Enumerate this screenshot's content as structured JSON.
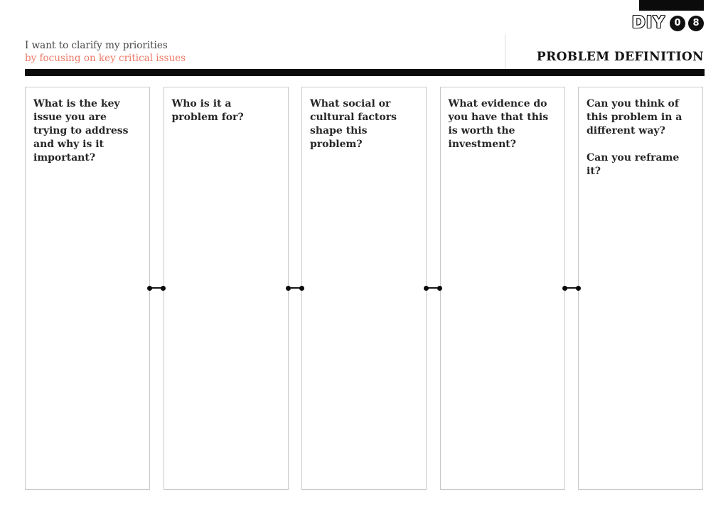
{
  "logo": {
    "brand": "DIY",
    "badges": [
      "0",
      "8"
    ]
  },
  "header": {
    "statement_line1": "I want to clarify my priorities",
    "statement_line2": "by focusing on key critical issues",
    "title": "PROBLEM DEFINITION"
  },
  "colors": {
    "accent": "#ee7a68",
    "bar_black": "#0b0b0b",
    "column_border": "#c9c9c9",
    "text_dark": "#262626"
  },
  "columns": [
    {
      "question": "What is the key issue you are trying to address and why is it important?"
    },
    {
      "question": "Who is it a problem for?"
    },
    {
      "question": "What social or cultural factors shape this problem?"
    },
    {
      "question": "What evidence do you have that this is worth the investment?"
    },
    {
      "question": "Can you think of this problem in a different way?",
      "question2": "Can you reframe it?"
    }
  ]
}
